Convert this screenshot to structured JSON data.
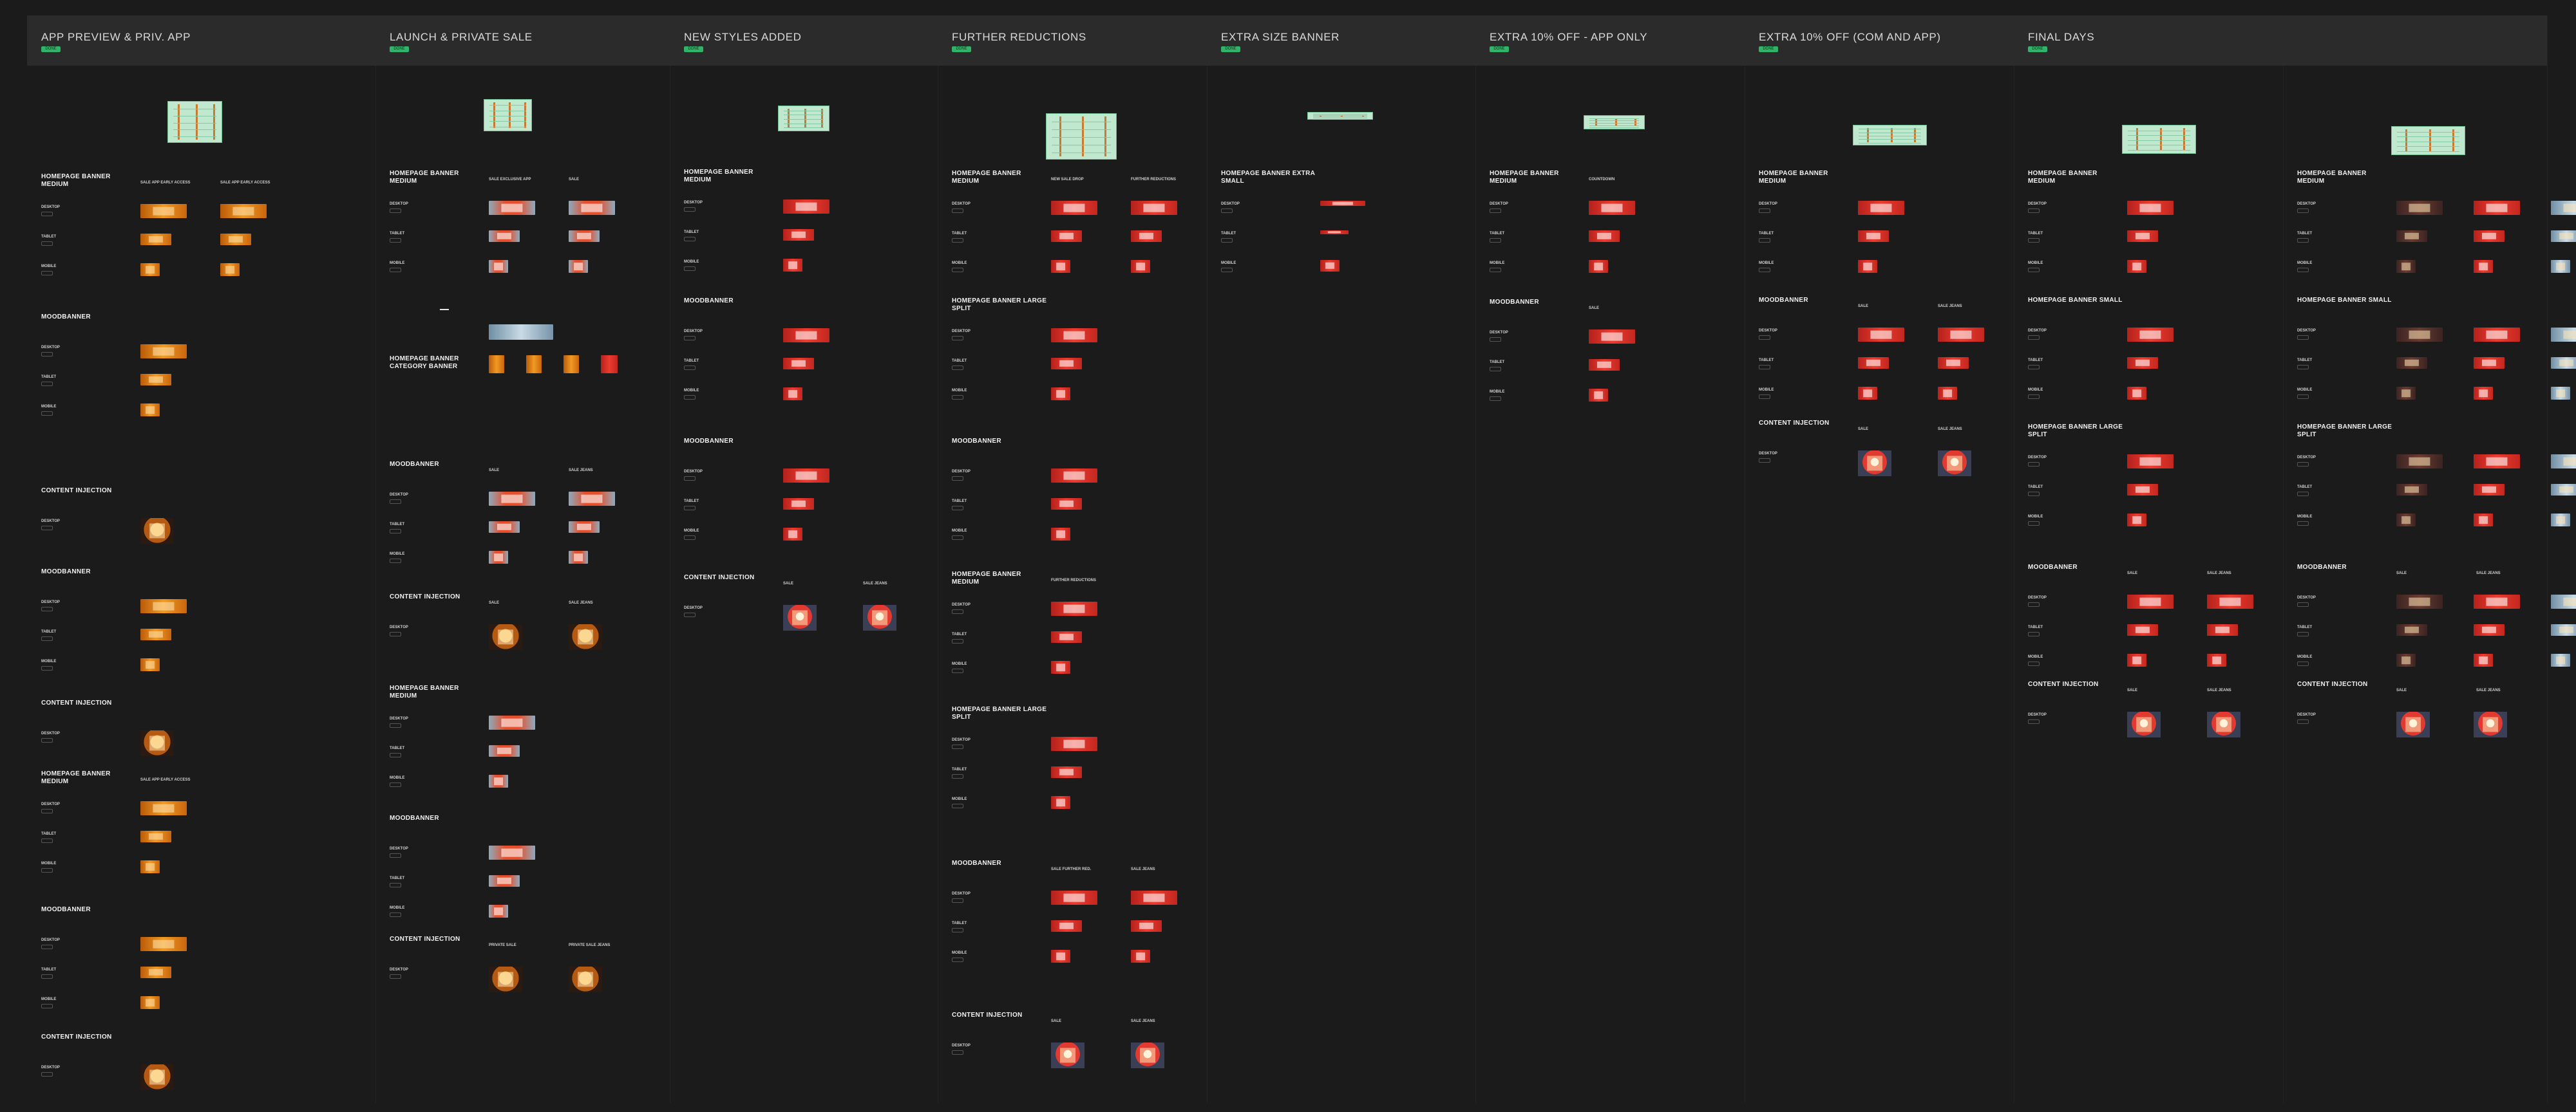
{
  "board": {
    "background": "#1b1b1b",
    "column_header_background": "#2b2b2b",
    "accent_badge": "#2fb56a"
  },
  "columns": [
    {
      "title": "APP PREVIEW & PRIV. APP",
      "sections": [
        {
          "title": "HOMEPAGE BANNER MEDIUM",
          "subs": [
            "SALE APP EARLY ACCESS",
            "SALE APP EARLY ACCESS"
          ]
        },
        {
          "title": "MOODBANNER",
          "subs": []
        },
        {
          "title": "CONTENT INJECTION",
          "subs": []
        },
        {
          "title": "MOODBANNER",
          "subs": []
        },
        {
          "title": "CONTENT INJECTION",
          "subs": []
        },
        {
          "title": "HOMEPAGE BANNER MEDIUM",
          "subs": [
            "SALE APP EARLY ACCESS"
          ]
        },
        {
          "title": "MOODBANNER",
          "subs": []
        },
        {
          "title": "CONTENT INJECTION",
          "subs": []
        }
      ]
    },
    {
      "title": "LAUNCH & PRIVATE SALE",
      "sections": [
        {
          "title": "HOMEPAGE BANNER MEDIUM",
          "subs": [
            "SALE EXCLUSIVE APP",
            "SALE"
          ]
        },
        {
          "title": "HOMEPAGE BANNER CATEGORY BANNER",
          "subs": []
        },
        {
          "title": "MOODBANNER",
          "subs": [
            "SALE",
            "SALE JEANS"
          ]
        },
        {
          "title": "CONTENT INJECTION",
          "subs": [
            "SALE",
            "SALE JEANS"
          ]
        },
        {
          "title": "HOMEPAGE BANNER MEDIUM",
          "subs": []
        },
        {
          "title": "MOODBANNER",
          "subs": []
        },
        {
          "title": "CONTENT INJECTION",
          "subs": [
            "PRIVATE SALE",
            "PRIVATE SALE JEANS"
          ]
        }
      ]
    },
    {
      "title": "NEW STYLES ADDED",
      "sections": [
        {
          "title": "HOMEPAGE BANNER MEDIUM",
          "subs": []
        },
        {
          "title": "MOODBANNER",
          "subs": []
        },
        {
          "title": "MOODBANNER",
          "subs": []
        },
        {
          "title": "CONTENT INJECTION",
          "subs": [
            "SALE",
            "SALE JEANS"
          ]
        }
      ]
    },
    {
      "title": "FURTHER REDUCTIONS",
      "sections": [
        {
          "title": "HOMEPAGE BANNER MEDIUM",
          "subs": [
            "NEW SALE DROP",
            "FURTHER REDUCTIONS"
          ]
        },
        {
          "title": "HOMEPAGE BANNER LARGE SPLIT",
          "subs": []
        },
        {
          "title": "MOODBANNER",
          "subs": []
        },
        {
          "title": "HOMEPAGE BANNER MEDIUM",
          "subs": [
            "FURTHER REDUCTIONS"
          ]
        },
        {
          "title": "HOMEPAGE BANNER LARGE SPLIT",
          "subs": []
        },
        {
          "title": "MOODBANNER",
          "subs": [
            "SALE FURTHER RED.",
            "SALE JEANS"
          ]
        },
        {
          "title": "CONTENT INJECTION",
          "subs": [
            "SALE",
            "SALE JEANS"
          ]
        }
      ]
    },
    {
      "title": "EXTRA SIZE BANNER",
      "sections": [
        {
          "title": "HOMEPAGE BANNER EXTRA SMALL",
          "subs": []
        }
      ]
    },
    {
      "title": "EXTRA 10% OFF - APP ONLY",
      "sections": [
        {
          "title": "HOMEPAGE BANNER MEDIUM",
          "subs": [
            "COUNTDOWN"
          ]
        },
        {
          "title": "MOODBANNER",
          "subs": [
            "SALE"
          ]
        }
      ]
    },
    {
      "title": "EXTRA 10% OFF (COM AND APP)",
      "sections": [
        {
          "title": "HOMEPAGE BANNER MEDIUM",
          "subs": []
        },
        {
          "title": "MOODBANNER",
          "subs": [
            "SALE",
            "SALE JEANS"
          ]
        },
        {
          "title": "CONTENT INJECTION",
          "subs": [
            "SALE",
            "SALE JEANS"
          ]
        }
      ]
    },
    {
      "title": "FINAL DAYS",
      "sections": [
        {
          "title": "HOMEPAGE BANNER MEDIUM",
          "subs": []
        },
        {
          "title": "HOMEPAGE BANNER SMALL",
          "subs": []
        },
        {
          "title": "HOMEPAGE BANNER LARGE SPLIT",
          "subs": []
        },
        {
          "title": "MOODBANNER",
          "subs": [
            "SALE",
            "SALE JEANS"
          ]
        },
        {
          "title": "CONTENT INJECTION",
          "subs": [
            "SALE",
            "SALE JEANS"
          ]
        }
      ]
    },
    {
      "title": "",
      "sections": [
        {
          "title": "HOMEPAGE BANNER MEDIUM",
          "subs": []
        },
        {
          "title": "HOMEPAGE BANNER SMALL",
          "subs": []
        },
        {
          "title": "HOMEPAGE BANNER LARGE SPLIT",
          "subs": []
        },
        {
          "title": "MOODBANNER",
          "subs": [
            "SALE",
            "SALE JEANS"
          ]
        },
        {
          "title": "CONTENT INJECTION",
          "subs": [
            "SALE",
            "SALE JEANS"
          ]
        }
      ]
    }
  ],
  "device_labels": {
    "desktop": "DESKTOP",
    "tablet": "TABLET",
    "mobile": "MOBILE"
  },
  "badge_text": "DONE"
}
